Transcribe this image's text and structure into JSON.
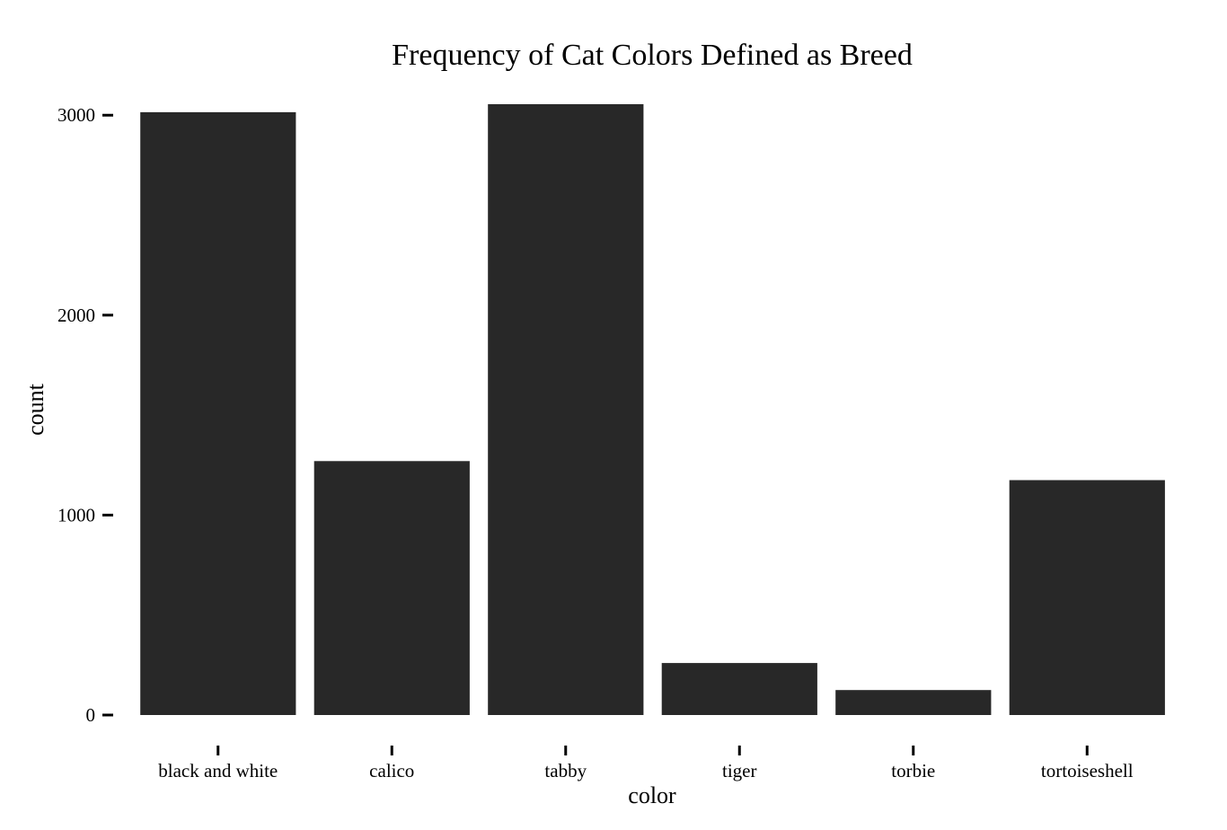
{
  "chart_data": {
    "type": "bar",
    "title": "Frequency of Cat Colors Defined as Breed",
    "xlabel": "color",
    "ylabel": "count",
    "categories": [
      "black and white",
      "calico",
      "tabby",
      "tiger",
      "torbie",
      "tortoiseshell"
    ],
    "values": [
      3015,
      1270,
      3055,
      260,
      125,
      1175
    ],
    "ylim": [
      0,
      3055
    ],
    "yticks": [
      0,
      1000,
      2000,
      3000
    ],
    "ytick_labels": [
      "0",
      "1000",
      "2000",
      "3000"
    ],
    "grid": false,
    "legend": "none",
    "bar_color": "#282828"
  }
}
